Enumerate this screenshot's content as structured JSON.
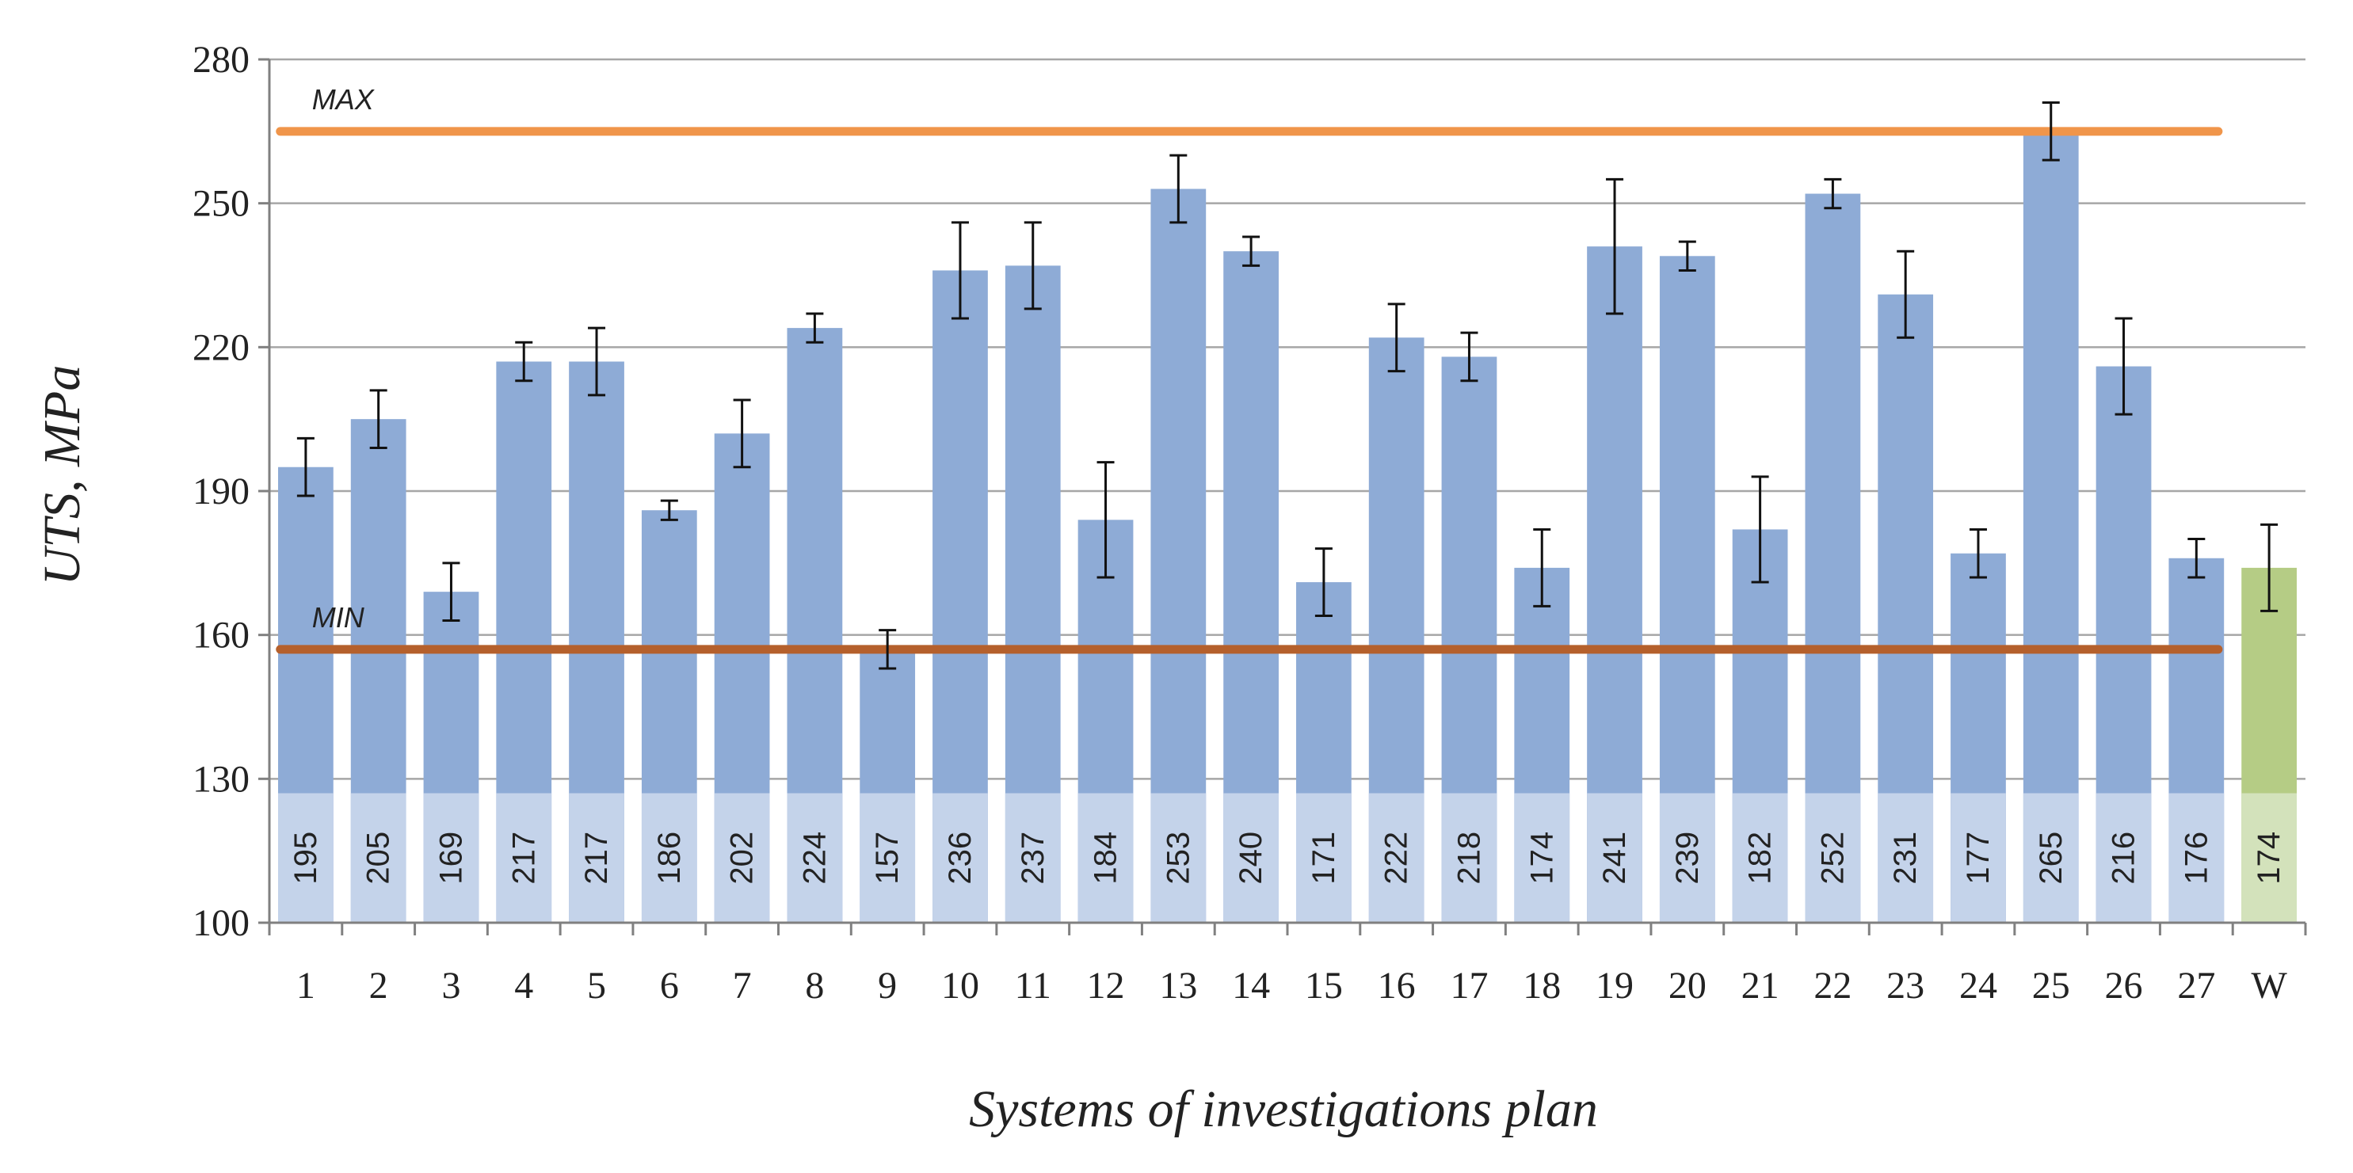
{
  "chart_data": {
    "type": "bar",
    "categories": [
      "1",
      "2",
      "3",
      "4",
      "5",
      "6",
      "7",
      "8",
      "9",
      "10",
      "11",
      "12",
      "13",
      "14",
      "15",
      "16",
      "17",
      "18",
      "19",
      "20",
      "21",
      "22",
      "23",
      "24",
      "25",
      "26",
      "27",
      "W"
    ],
    "values": [
      195,
      205,
      169,
      217,
      217,
      186,
      202,
      224,
      157,
      236,
      237,
      184,
      253,
      240,
      171,
      222,
      218,
      174,
      241,
      239,
      182,
      252,
      231,
      177,
      265,
      216,
      176,
      174
    ],
    "errors": [
      6,
      6,
      6,
      4,
      7,
      2,
      7,
      3,
      4,
      10,
      9,
      12,
      7,
      3,
      7,
      7,
      5,
      8,
      14,
      3,
      11,
      3,
      9,
      5,
      6,
      10,
      4,
      9
    ],
    "value_labels": [
      "195",
      "205",
      "169",
      "217",
      "217",
      "186",
      "202",
      "224",
      "157",
      "236",
      "237",
      "184",
      "253",
      "240",
      "171",
      "222",
      "218",
      "174",
      "241",
      "239",
      "182",
      "252",
      "231",
      "177",
      "265",
      "216",
      "176",
      "174"
    ],
    "xlabel": "Systems of investigations plan",
    "ylabel": "UTS, MPa",
    "ylim": [
      100,
      280
    ],
    "yticks": [
      "100",
      "130",
      "160",
      "190",
      "220",
      "250",
      "280"
    ],
    "grid": true,
    "reference_lines": [
      {
        "label": "MAX",
        "value": 265,
        "color": "#f0954a"
      },
      {
        "label": "MIN",
        "value": 157,
        "color": "#b5602c"
      }
    ],
    "colors": {
      "bar": "#8eabd6",
      "highlight": "#b5cc85",
      "label_band": "#c4d3ea",
      "label_band_highlight": "#d3e2bb",
      "error": "#111111",
      "grid": "#a6a6a6"
    }
  }
}
